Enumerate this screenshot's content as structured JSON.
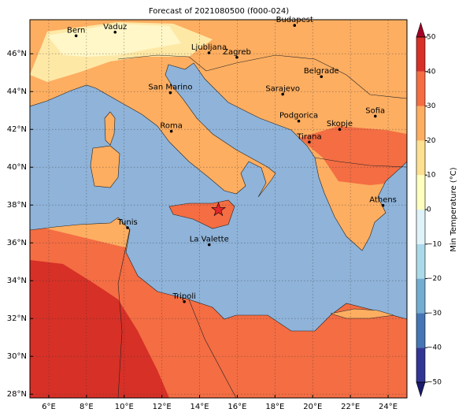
{
  "map": {
    "title": "Forecast of 2021080500 (f000-024)",
    "xlim": [
      5,
      25
    ],
    "ylim": [
      27.8,
      47.8
    ],
    "xticks": [
      {
        "value": 6,
        "label": "6°E"
      },
      {
        "value": 8,
        "label": "8°E"
      },
      {
        "value": 10,
        "label": "10°E"
      },
      {
        "value": 12,
        "label": "12°E"
      },
      {
        "value": 14,
        "label": "14°E"
      },
      {
        "value": 16,
        "label": "16°E"
      },
      {
        "value": 18,
        "label": "18°E"
      },
      {
        "value": 20,
        "label": "20°E"
      },
      {
        "value": 22,
        "label": "22°E"
      },
      {
        "value": 24,
        "label": "24°E"
      }
    ],
    "yticks": [
      {
        "value": 28,
        "label": "28°N"
      },
      {
        "value": 30,
        "label": "30°N"
      },
      {
        "value": 32,
        "label": "32°N"
      },
      {
        "value": 34,
        "label": "34°N"
      },
      {
        "value": 36,
        "label": "36°N"
      },
      {
        "value": 38,
        "label": "38°N"
      },
      {
        "value": 40,
        "label": "40°N"
      },
      {
        "value": 42,
        "label": "42°N"
      },
      {
        "value": 44,
        "label": "44°N"
      },
      {
        "value": 46,
        "label": "46°N"
      }
    ],
    "cities": [
      {
        "name": "Bern",
        "lon": 7.45,
        "lat": 46.95
      },
      {
        "name": "Vaduz",
        "lon": 9.52,
        "lat": 47.14
      },
      {
        "name": "Budapest",
        "lon": 19.04,
        "lat": 47.5
      },
      {
        "name": "Ljubljana",
        "lon": 14.5,
        "lat": 46.05
      },
      {
        "name": "Zagreb",
        "lon": 15.98,
        "lat": 45.81
      },
      {
        "name": "Belgrade",
        "lon": 20.46,
        "lat": 44.79
      },
      {
        "name": "San Marino",
        "lon": 12.45,
        "lat": 43.94
      },
      {
        "name": "Sarajevo",
        "lon": 18.41,
        "lat": 43.86
      },
      {
        "name": "Sofia",
        "lon": 23.32,
        "lat": 42.7
      },
      {
        "name": "Roma",
        "lon": 12.5,
        "lat": 41.9
      },
      {
        "name": "Podgorica",
        "lon": 19.26,
        "lat": 42.44
      },
      {
        "name": "Skopje",
        "lon": 21.43,
        "lat": 42.0
      },
      {
        "name": "Tirana",
        "lon": 19.82,
        "lat": 41.33
      },
      {
        "name": "Athens",
        "lon": 23.73,
        "lat": 37.98
      },
      {
        "name": "Tunis",
        "lon": 10.18,
        "lat": 36.8
      },
      {
        "name": "La Valette",
        "lon": 14.51,
        "lat": 35.9
      },
      {
        "name": "Tripoli",
        "lon": 13.19,
        "lat": 32.89
      }
    ],
    "marker": {
      "lon": 15.0,
      "lat": 37.75,
      "color": "#e8262a"
    },
    "colorbar": {
      "label": "Min Temperature (°C)",
      "lim": [
        -50,
        50
      ],
      "ticks": [
        {
          "value": -50,
          "label": "−50"
        },
        {
          "value": -40,
          "label": "−40"
        },
        {
          "value": -30,
          "label": "−30"
        },
        {
          "value": -20,
          "label": "−20"
        },
        {
          "value": -10,
          "label": "−10"
        },
        0,
        10,
        20,
        30,
        40,
        50
      ],
      "levels": [
        -50,
        -40,
        -30,
        -20,
        -10,
        0,
        10,
        20,
        30,
        40,
        50
      ],
      "colors": [
        "#313695",
        "#4575b4",
        "#74add1",
        "#abd9e9",
        "#e0f3f8",
        "#ffffbf",
        "#fee090",
        "#fdae61",
        "#f46d43",
        "#d73027"
      ],
      "under": "#1a1a6e",
      "over": "#a50026"
    }
  }
}
